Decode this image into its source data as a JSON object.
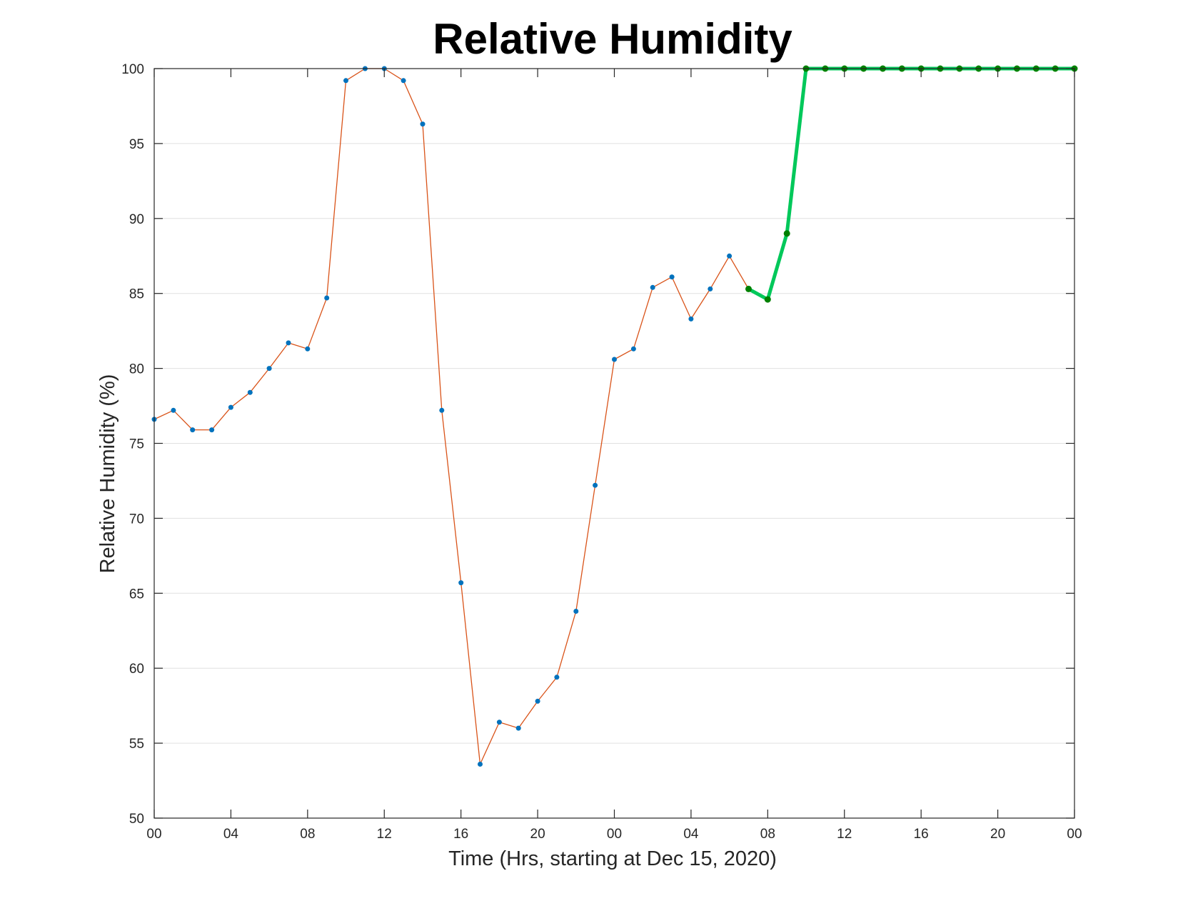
{
  "chart_data": {
    "type": "line",
    "title": "Relative Humidity",
    "xlabel": "Time (Hrs, starting at Dec 15, 2020)",
    "ylabel": "Relative Humidity (%)",
    "x_unit": "hours",
    "xlim": [
      0,
      48
    ],
    "ylim": [
      50,
      100
    ],
    "yticks": [
      50,
      55,
      60,
      65,
      70,
      75,
      80,
      85,
      90,
      95,
      100
    ],
    "xticks": [
      0,
      4,
      8,
      12,
      16,
      20,
      24,
      28,
      32,
      36,
      40,
      44,
      48
    ],
    "xtick_labels": [
      "00",
      "04",
      "08",
      "12",
      "16",
      "20",
      "00",
      "04",
      "08",
      "12",
      "16",
      "20",
      "00"
    ],
    "grid": "horizontal",
    "series": [
      {
        "role": "observed",
        "color": "#d95319",
        "marker_color": "#0072bd",
        "x": [
          0,
          1,
          2,
          3,
          4,
          5,
          6,
          7,
          8,
          9,
          10,
          11,
          12,
          13,
          14,
          15,
          16,
          17,
          18,
          19,
          20,
          21,
          22,
          23,
          24,
          25,
          26,
          27,
          28,
          29,
          30,
          31
        ],
        "values": [
          76.6,
          77.2,
          75.9,
          75.9,
          77.4,
          78.4,
          80.0,
          81.7,
          81.3,
          84.7,
          99.2,
          100,
          100,
          99.2,
          96.3,
          77.2,
          65.7,
          53.6,
          56.4,
          56.0,
          57.8,
          59.4,
          63.8,
          72.2,
          80.6,
          81.3,
          85.4,
          86.1,
          83.3,
          85.3,
          87.5,
          85.3
        ]
      },
      {
        "role": "forecast",
        "color": "#00c85a",
        "marker_color": "#008000",
        "x": [
          31,
          32,
          33,
          34,
          35,
          36,
          37,
          38,
          39,
          40,
          41,
          42,
          43,
          44,
          45,
          46,
          47,
          48
        ],
        "values": [
          85.3,
          84.6,
          89.0,
          100,
          100,
          100,
          100,
          100,
          100,
          100,
          100,
          100,
          100,
          100,
          100,
          100,
          100,
          100
        ]
      }
    ]
  }
}
